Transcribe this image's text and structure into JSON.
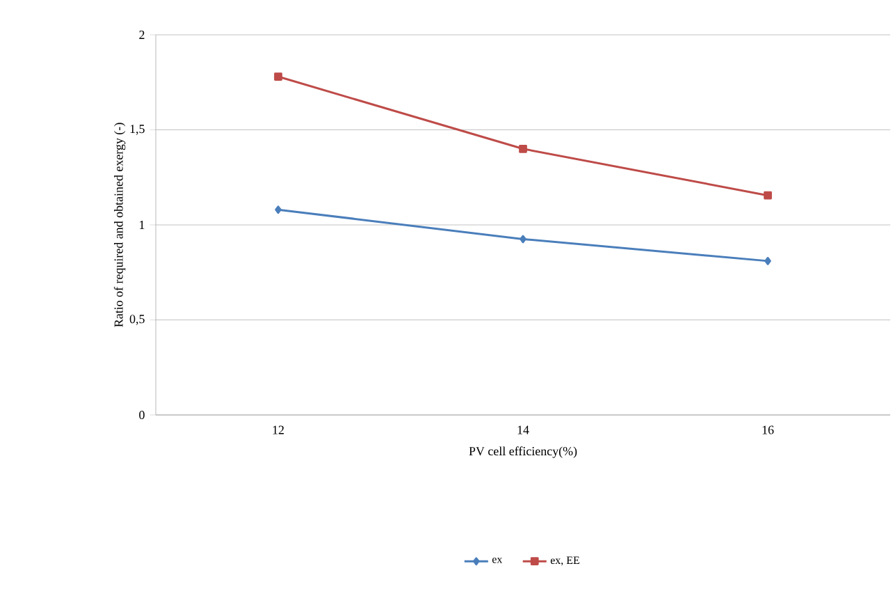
{
  "chart_data": {
    "type": "line",
    "xlabel": "PV cell efficiency(%)",
    "ylabel": "Ratio of required and obtained exergy (-)",
    "categories": [
      "12",
      "14",
      "16"
    ],
    "series": [
      {
        "name": "ex",
        "color": "#4a7ebb",
        "marker": "diamond",
        "values": [
          1.08,
          0.925,
          0.81
        ]
      },
      {
        "name": "ex, EE",
        "color": "#be4b48",
        "marker": "square",
        "values": [
          1.78,
          1.4,
          1.155
        ]
      }
    ],
    "ylim": [
      0,
      2
    ],
    "yticks": [
      0,
      {
        "value": 0.5,
        "label": "0,5"
      },
      1,
      {
        "value": 1.5,
        "label": "1,5"
      },
      2
    ],
    "grid": "y",
    "legend": "bottom",
    "line_style": "solid"
  }
}
